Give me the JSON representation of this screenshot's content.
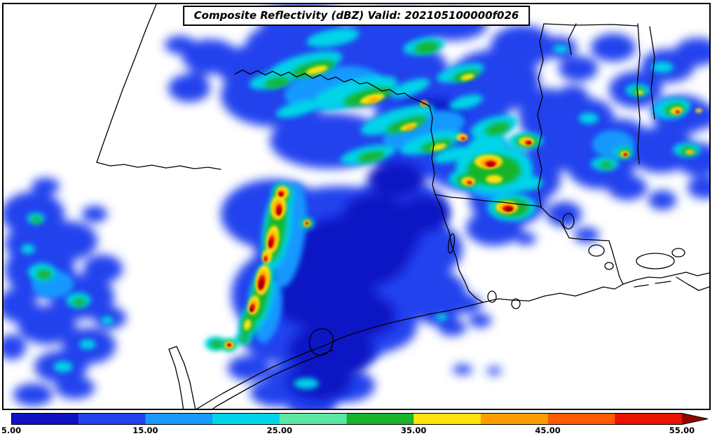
{
  "title": {
    "text": "Composite Reflectivity (dBZ) Valid: 202105100000f026"
  },
  "colorbar": {
    "min_value": 5,
    "max_value": 55,
    "ticks": [
      "5.00",
      "15.00",
      "25.00",
      "35.00",
      "45.00",
      "55.00"
    ],
    "segments": [
      {
        "from": 5,
        "to": 10,
        "color": "#0e12c4"
      },
      {
        "from": 10,
        "to": 15,
        "color": "#2142ee"
      },
      {
        "from": 15,
        "to": 20,
        "color": "#1899ff"
      },
      {
        "from": 20,
        "to": 25,
        "color": "#00d4e8"
      },
      {
        "from": 25,
        "to": 30,
        "color": "#5ce8a4"
      },
      {
        "from": 30,
        "to": 35,
        "color": "#17b42c"
      },
      {
        "from": 35,
        "to": 40,
        "color": "#ffe30a"
      },
      {
        "from": 40,
        "to": 45,
        "color": "#ff9d00"
      },
      {
        "from": 45,
        "to": 50,
        "color": "#ff5a00"
      },
      {
        "from": 50,
        "to": 55,
        "color": "#ea1200"
      }
    ],
    "overflow_color": "#8f0600"
  }
}
